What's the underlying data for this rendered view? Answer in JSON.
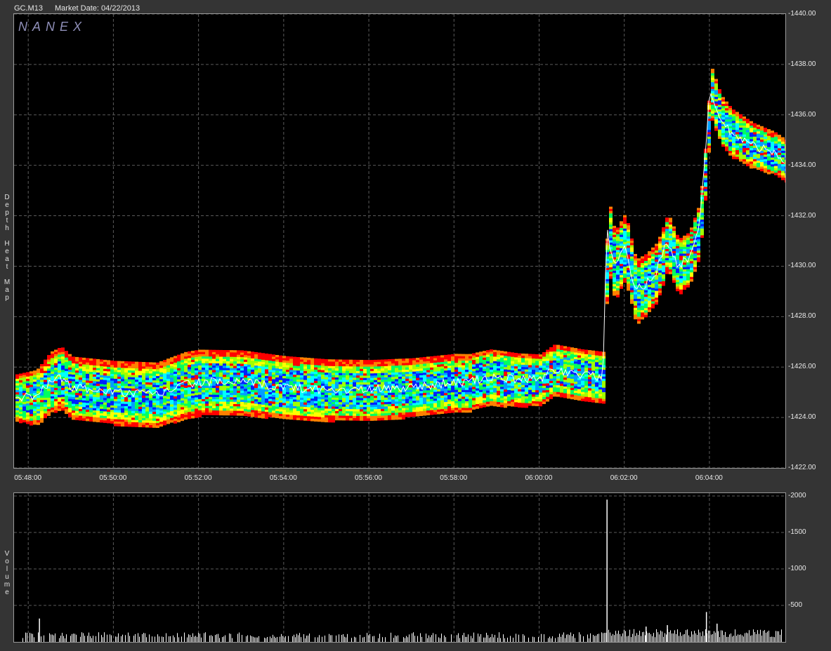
{
  "header": {
    "symbol": "GC.M13",
    "market_date": "Market Date: 04/22/2013"
  },
  "logo": "NANEX",
  "side_labels": {
    "main": "Depth Heat Map",
    "volume": "Volume"
  },
  "colors": {
    "background": "#000000",
    "grid": "#5a5a5a",
    "frame": "#343434",
    "trade_line": "#ffffff",
    "heat_scale": [
      "#0020ff",
      "#00a0ff",
      "#00ffff",
      "#00ff60",
      "#a0ff00",
      "#ffff00",
      "#ff8000",
      "#ff0000"
    ]
  },
  "chart_data": [
    {
      "type": "heatmap",
      "title": "",
      "xlabel": "",
      "ylabel": "Depth Heat Map",
      "x_ticks": [
        "05:48:00",
        "05:50:00",
        "05:52:00",
        "05:54:00",
        "05:56:00",
        "05:58:00",
        "06:00:00",
        "06:02:00",
        "06:04:00"
      ],
      "y_ticks": [
        "1440.00",
        "1438.00",
        "1436.00",
        "1434.00",
        "1432.00",
        "1430.00",
        "1428.00",
        "1426.00",
        "1424.00",
        "1422.00"
      ],
      "ylim": [
        1422,
        1440
      ],
      "xlim": [
        "05:47:40",
        "06:05:47"
      ],
      "grid": true,
      "series": [
        {
          "price_path": [
            [
              "05:47:40",
              1424.8
            ],
            [
              "05:48:10",
              1424.8
            ],
            [
              "05:48:30",
              1425.4
            ],
            [
              "05:48:45",
              1425.6
            ],
            [
              "05:49:00",
              1425.2
            ],
            [
              "05:50:00",
              1425.0
            ],
            [
              "05:51:00",
              1424.9
            ],
            [
              "05:51:40",
              1425.3
            ],
            [
              "05:52:00",
              1425.4
            ],
            [
              "05:53:00",
              1425.4
            ],
            [
              "05:54:00",
              1425.2
            ],
            [
              "05:55:00",
              1425.1
            ],
            [
              "05:56:00",
              1425.1
            ],
            [
              "05:57:00",
              1425.2
            ],
            [
              "05:58:00",
              1425.4
            ],
            [
              "05:58:20",
              1425.4
            ],
            [
              "05:58:50",
              1425.6
            ],
            [
              "05:59:30",
              1425.5
            ],
            [
              "06:00:00",
              1425.5
            ],
            [
              "06:00:20",
              1425.9
            ],
            [
              "06:01:00",
              1425.7
            ],
            [
              "06:01:30",
              1425.6
            ],
            [
              "06:01:35",
              1431.5
            ],
            [
              "06:01:45",
              1430.0
            ],
            [
              "06:02:00",
              1430.8
            ],
            [
              "06:02:15",
              1429.0
            ],
            [
              "06:02:30",
              1429.3
            ],
            [
              "06:02:45",
              1429.8
            ],
            [
              "06:03:00",
              1431.0
            ],
            [
              "06:03:15",
              1430.0
            ],
            [
              "06:03:30",
              1430.3
            ],
            [
              "06:03:45",
              1431.5
            ],
            [
              "06:03:55",
              1434.5
            ],
            [
              "06:04:00",
              1437.0
            ],
            [
              "06:04:15",
              1435.8
            ],
            [
              "06:04:30",
              1435.3
            ],
            [
              "06:05:00",
              1434.8
            ],
            [
              "06:05:30",
              1434.5
            ],
            [
              "06:05:47",
              1434.2
            ]
          ],
          "band_half_width": [
            [
              "05:47:40",
              0.9
            ],
            [
              "05:48:30",
              1.2
            ],
            [
              "05:51:40",
              1.3
            ],
            [
              "05:58:50",
              1.1
            ],
            [
              "06:00:00",
              1.0
            ],
            [
              "06:01:30",
              1.0
            ],
            [
              "06:01:35",
              1.4
            ],
            [
              "06:03:00",
              1.1
            ],
            [
              "06:04:00",
              1.0
            ],
            [
              "06:05:47",
              0.8
            ]
          ]
        }
      ]
    },
    {
      "type": "bar",
      "title": "",
      "xlabel": "",
      "ylabel": "Volume",
      "y_ticks": [
        "2000",
        "1500",
        "1000",
        "500"
      ],
      "ylim": [
        0,
        2000
      ],
      "grid": true,
      "spikes": [
        {
          "time": "05:48:15",
          "value": 320
        },
        {
          "time": "06:01:35",
          "value": 1950
        },
        {
          "time": "06:02:30",
          "value": 210
        },
        {
          "time": "06:03:00",
          "value": 230
        },
        {
          "time": "06:03:55",
          "value": 410
        },
        {
          "time": "06:04:10",
          "value": 250
        }
      ],
      "baseline": {
        "before_06_01_35": 120,
        "after_06_01_35": 160
      }
    }
  ]
}
